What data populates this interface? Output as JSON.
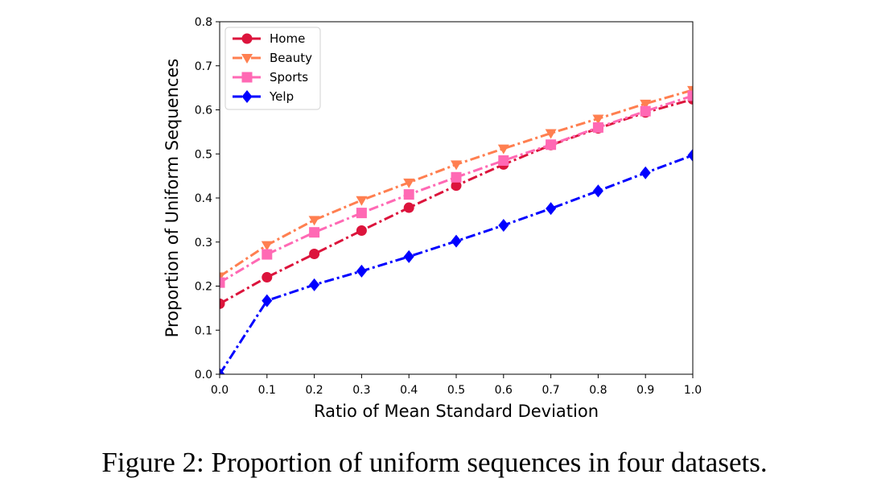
{
  "caption": "Figure 2: Proportion of uniform sequences in four datasets.",
  "chart_data": {
    "type": "line",
    "title": "",
    "xlabel": "Ratio of Mean Standard Deviation",
    "ylabel": "Proportion of Uniform Sequences",
    "xlim": [
      0.0,
      1.0
    ],
    "ylim": [
      0.0,
      0.8
    ],
    "x_ticks": [
      "0.0",
      "0.1",
      "0.2",
      "0.3",
      "0.4",
      "0.5",
      "0.6",
      "0.7",
      "0.8",
      "0.9",
      "1.0"
    ],
    "y_ticks": [
      "0.0",
      "0.1",
      "0.2",
      "0.3",
      "0.4",
      "0.5",
      "0.6",
      "0.7",
      "0.8"
    ],
    "grid": false,
    "legend_position": "top-left",
    "x": [
      0.0,
      0.1,
      0.2,
      0.3,
      0.4,
      0.5,
      0.6,
      0.7,
      0.8,
      0.9,
      1.0
    ],
    "series": [
      {
        "name": "Home",
        "color": "#dc143c",
        "marker": "circle",
        "values": [
          0.16,
          0.22,
          0.273,
          0.326,
          0.378,
          0.428,
          0.476,
          0.52,
          0.558,
          0.594,
          0.624
        ]
      },
      {
        "name": "Beauty",
        "color": "#ff7f50",
        "marker": "triangle-down",
        "values": [
          0.222,
          0.293,
          0.35,
          0.395,
          0.435,
          0.476,
          0.512,
          0.547,
          0.58,
          0.614,
          0.645
        ]
      },
      {
        "name": "Sports",
        "color": "#ff69b4",
        "marker": "square",
        "values": [
          0.208,
          0.272,
          0.322,
          0.366,
          0.408,
          0.447,
          0.485,
          0.521,
          0.56,
          0.597,
          0.632
        ]
      },
      {
        "name": "Yelp",
        "color": "#0000ff",
        "marker": "diamond",
        "values": [
          0.0,
          0.167,
          0.203,
          0.234,
          0.267,
          0.302,
          0.338,
          0.376,
          0.416,
          0.457,
          0.497
        ]
      }
    ]
  }
}
